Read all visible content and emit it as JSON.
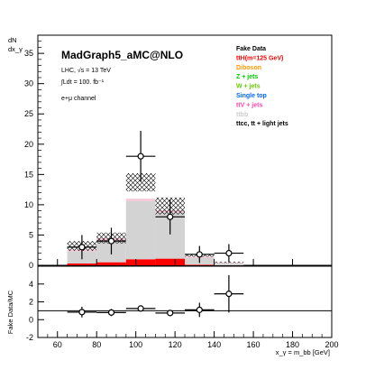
{
  "chart_data": [
    {
      "type": "bar",
      "title": "MadGraph5_aMC@NLO",
      "info_lines": [
        "LHC, √s = 13 TeV",
        "∫Ldt = 100. fb⁻¹",
        "e+μ channel"
      ],
      "ylabel_top": "dN",
      "ylabel_bottom": "dx_γ",
      "ylim": [
        0,
        38
      ],
      "yticks": [
        0,
        5,
        10,
        15,
        20,
        25,
        30,
        35
      ],
      "xlim": [
        50,
        200
      ],
      "bin_edges": [
        50,
        65,
        80,
        95,
        110,
        125,
        140,
        155,
        170,
        185,
        200
      ],
      "legend": [
        {
          "label": "Fake Data",
          "color": "#000000"
        },
        {
          "label": "ttH(m=125 GeV)",
          "color": "#ff0000"
        },
        {
          "label": "Diboson",
          "color": "#ff9900"
        },
        {
          "label": "Z + jets",
          "color": "#00cc00"
        },
        {
          "label": "W + jets",
          "color": "#66cc00"
        },
        {
          "label": "Single top",
          "color": "#0066ff"
        },
        {
          "label": "ttV + jets",
          "color": "#ff44aa"
        },
        {
          "label": "ttbb",
          "color": "#cccccc"
        },
        {
          "label": "ttcc, tt + light jets",
          "color": "#000000"
        }
      ],
      "series": [
        {
          "name": "ttH(m=125 GeV)",
          "values": [
            0,
            0.3,
            0.5,
            1.0,
            1.1,
            0.1,
            0,
            0,
            0,
            0
          ]
        },
        {
          "name": "ttbb",
          "values": [
            0,
            2.0,
            3.6,
            9.6,
            7.6,
            1.1,
            0.3,
            0,
            0,
            0
          ]
        },
        {
          "name": "ttcc, tt + light jets",
          "values": [
            0,
            0.3,
            0.4,
            0.4,
            0.4,
            0.2,
            0.1,
            0,
            0,
            0
          ]
        }
      ],
      "uncertainty_band": {
        "low": [
          0,
          2.4,
          3.6,
          12.2,
          8.4,
          1.4,
          0.4,
          0,
          0,
          0
        ],
        "high": [
          0,
          4.0,
          5.4,
          15.2,
          11.2,
          1.9,
          0.6,
          0,
          0,
          0
        ]
      },
      "data_points": [
        {
          "x": 72.5,
          "y": 3.0,
          "err": 2.0
        },
        {
          "x": 87.5,
          "y": 4.0,
          "err": 2.2
        },
        {
          "x": 102.5,
          "y": 18.0,
          "err": 4.2
        },
        {
          "x": 117.5,
          "y": 8.0,
          "err": 2.9
        },
        {
          "x": 132.5,
          "y": 1.8,
          "err": 1.4
        },
        {
          "x": 147.5,
          "y": 2.0,
          "err": 1.5
        }
      ]
    },
    {
      "type": "scatter",
      "ylabel": "Fake Data/MC",
      "xlabel": "x_γ = m_bb [GeV]",
      "xlim": [
        50,
        200
      ],
      "xticks": [
        60,
        80,
        100,
        120,
        140,
        160,
        180,
        200
      ],
      "ylim": [
        -2,
        6
      ],
      "yticks": [
        -2,
        0,
        2,
        4
      ],
      "reference_line": 1,
      "points": [
        {
          "x": 72.5,
          "y": 0.85,
          "err": 0.6
        },
        {
          "x": 87.5,
          "y": 0.8,
          "err": 0.4
        },
        {
          "x": 102.5,
          "y": 1.25,
          "err": 0.3
        },
        {
          "x": 117.5,
          "y": 0.75,
          "err": 0.3
        },
        {
          "x": 132.5,
          "y": 1.1,
          "err": 0.8
        },
        {
          "x": 147.5,
          "y": 2.9,
          "err": 2.1
        }
      ]
    }
  ]
}
